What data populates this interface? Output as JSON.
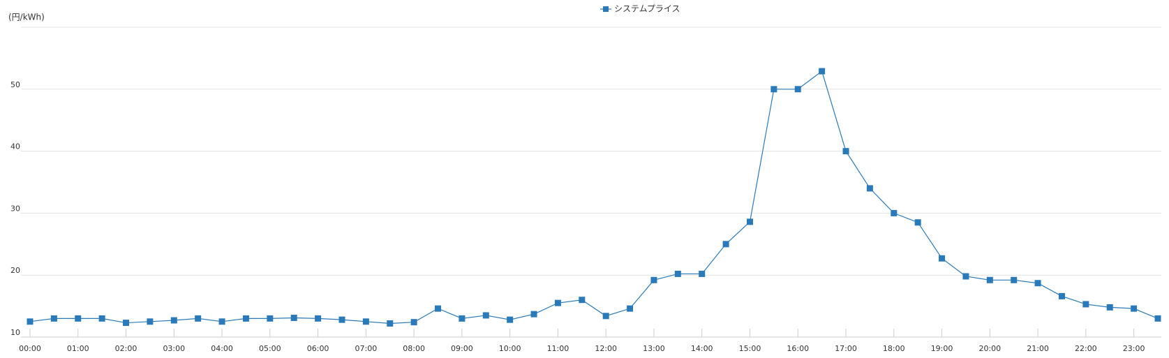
{
  "chart_data": {
    "type": "line",
    "y_label": "(円/kWh)",
    "categories": [
      "00:00",
      null,
      "01:00",
      null,
      "02:00",
      null,
      "03:00",
      null,
      "04:00",
      null,
      "05:00",
      null,
      "06:00",
      null,
      "07:00",
      null,
      "08:00",
      null,
      "09:00",
      null,
      "10:00",
      null,
      "11:00",
      null,
      "12:00",
      null,
      "13:00",
      null,
      "14:00",
      null,
      "15:00",
      null,
      "16:00",
      null,
      "17:00",
      null,
      "18:00",
      null,
      "19:00",
      null,
      "20:00",
      null,
      "21:00",
      null,
      "22:00",
      null,
      "23:00",
      null
    ],
    "series": [
      {
        "name": "システムプライス",
        "color": "#2a7ab9",
        "values": [
          12.5,
          13.0,
          13.0,
          13.0,
          12.3,
          12.5,
          12.7,
          13.0,
          12.5,
          13.0,
          13.0,
          13.1,
          13.0,
          12.8,
          12.5,
          12.2,
          12.4,
          14.6,
          13.0,
          13.5,
          12.8,
          13.7,
          15.5,
          16.0,
          13.4,
          14.6,
          19.2,
          20.2,
          20.2,
          25.0,
          28.6,
          50.0,
          50.0,
          52.9,
          40.0,
          34.0,
          30.0,
          28.5,
          22.7,
          19.8,
          19.2,
          19.2,
          18.7,
          16.6,
          15.3,
          14.8,
          14.6,
          13.0
        ]
      }
    ],
    "ylim": [
      10,
      60
    ],
    "yticks": [
      10,
      20,
      30,
      40,
      50
    ],
    "grid": true,
    "legend": "top"
  }
}
